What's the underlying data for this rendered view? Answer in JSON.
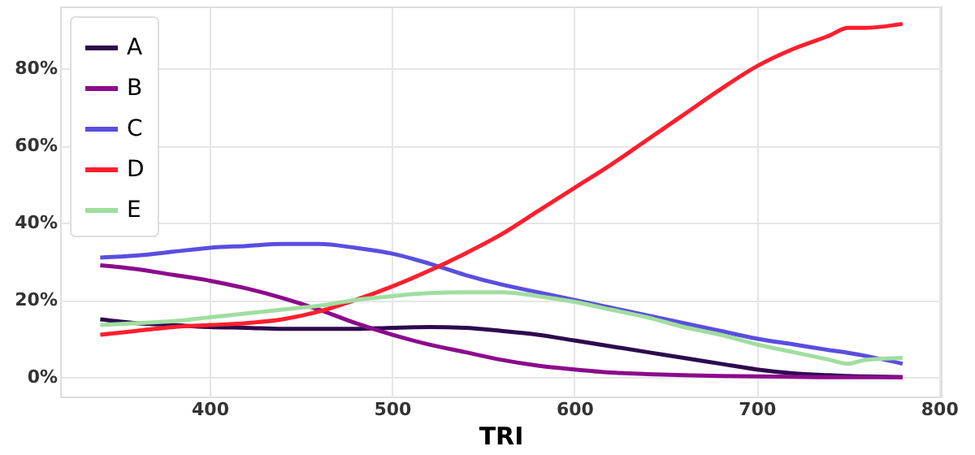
{
  "chart_data": {
    "type": "line",
    "xlabel": "TRI",
    "x": [
      340,
      360,
      380,
      400,
      420,
      440,
      460,
      480,
      500,
      520,
      540,
      560,
      580,
      600,
      620,
      640,
      660,
      680,
      700,
      720,
      740,
      750,
      760,
      780
    ],
    "series": [
      {
        "name": "A",
        "color": "#2d0a4e",
        "values": [
          15,
          14,
          13.5,
          13,
          12.8,
          12.5,
          12.5,
          12.5,
          12.8,
          13,
          12.8,
          12,
          11,
          9.5,
          8,
          6.5,
          5,
          3.5,
          2,
          1,
          0.5,
          0.3,
          0.2,
          0
        ]
      },
      {
        "name": "B",
        "color": "#8c0a8c",
        "values": [
          29,
          28,
          26.5,
          25,
          23,
          20.5,
          17.5,
          14,
          11,
          8.5,
          6.5,
          4.5,
          3,
          2,
          1.2,
          0.8,
          0.5,
          0.3,
          0.2,
          0.1,
          0,
          0,
          0,
          0
        ]
      },
      {
        "name": "C",
        "color": "#5a4ee0",
        "values": [
          31,
          31.5,
          32.5,
          33.5,
          34,
          34.5,
          34.5,
          33.5,
          32,
          29.5,
          26.5,
          24,
          22,
          20,
          18,
          16,
          14,
          12,
          10,
          8.5,
          7,
          6.3,
          5.5,
          3.5
        ]
      },
      {
        "name": "D",
        "color": "#ff1f2e",
        "values": [
          11,
          12,
          13,
          13.5,
          14,
          15,
          17,
          20,
          23.5,
          27.5,
          32,
          37,
          43,
          49,
          55,
          61.5,
          68,
          74.5,
          80.5,
          85,
          88.5,
          90.5,
          90.5,
          91.5
        ]
      },
      {
        "name": "E",
        "color": "#a0dea0",
        "values": [
          13.5,
          14,
          14.5,
          15.5,
          16.5,
          17.5,
          18.5,
          20,
          21,
          21.8,
          22,
          22,
          21,
          19.5,
          17.5,
          15.5,
          13,
          11,
          8.5,
          6.5,
          4.5,
          3.5,
          4.5,
          5
        ]
      }
    ],
    "xlim": [
      318,
      801
    ],
    "ylim": [
      -5,
      96
    ],
    "xticks": [
      400,
      500,
      600,
      700,
      800
    ],
    "yticks": [
      {
        "value": 0,
        "label": "0%"
      },
      {
        "value": 20,
        "label": "20%"
      },
      {
        "value": 40,
        "label": "40%"
      },
      {
        "value": 60,
        "label": "60%"
      },
      {
        "value": 80,
        "label": "80%"
      }
    ],
    "grid": true,
    "legend": "top left",
    "line_style": "solid",
    "marker": "none"
  }
}
